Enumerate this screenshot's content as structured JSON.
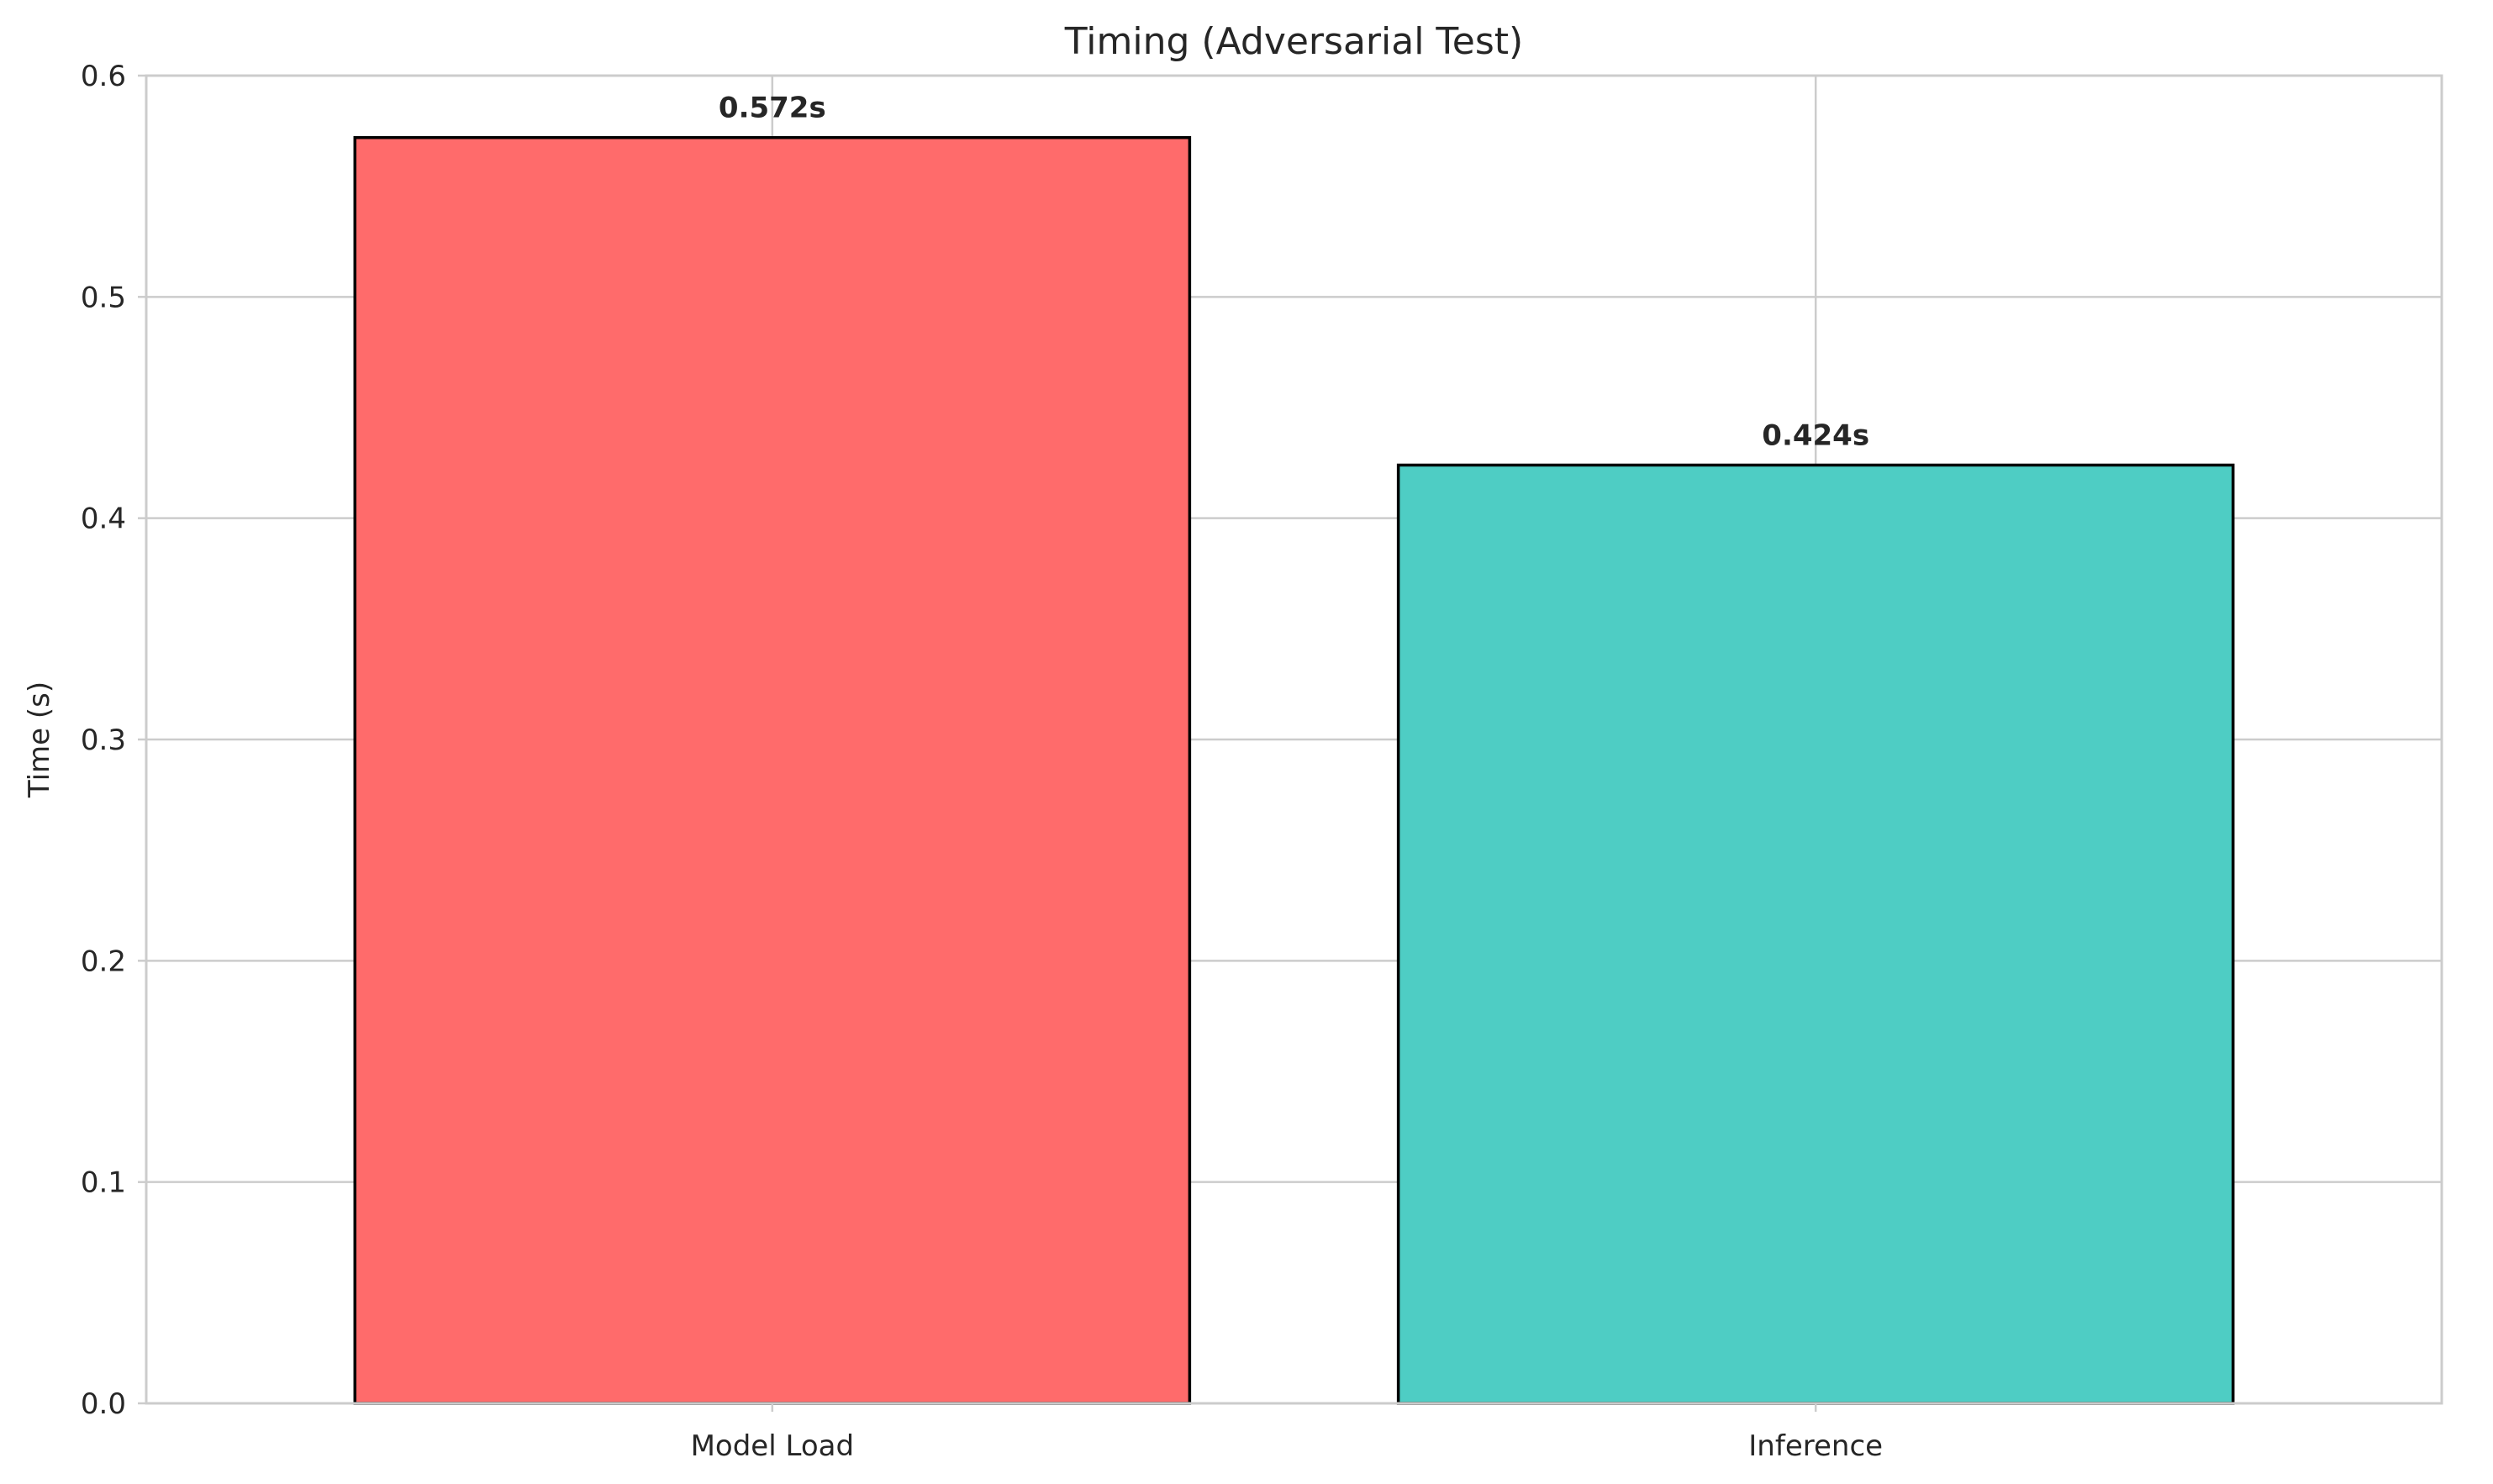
{
  "chart_data": {
    "type": "bar",
    "title": "Timing (Adversarial Test)",
    "xlabel": "",
    "ylabel": "Time (s)",
    "categories": [
      "Model Load",
      "Inference"
    ],
    "values": [
      0.572,
      0.424
    ],
    "data_labels": [
      "0.572s",
      "0.424s"
    ],
    "colors": [
      "#ff6b6b",
      "#4ecdc4"
    ],
    "edge_color": "#000000",
    "ylim": [
      0,
      0.6
    ],
    "yticks": [
      0.0,
      0.1,
      0.2,
      0.3,
      0.4,
      0.5,
      0.6
    ],
    "ytick_labels": [
      "0.0",
      "0.1",
      "0.2",
      "0.3",
      "0.4",
      "0.5",
      "0.6"
    ],
    "grid": true,
    "legend": false
  }
}
